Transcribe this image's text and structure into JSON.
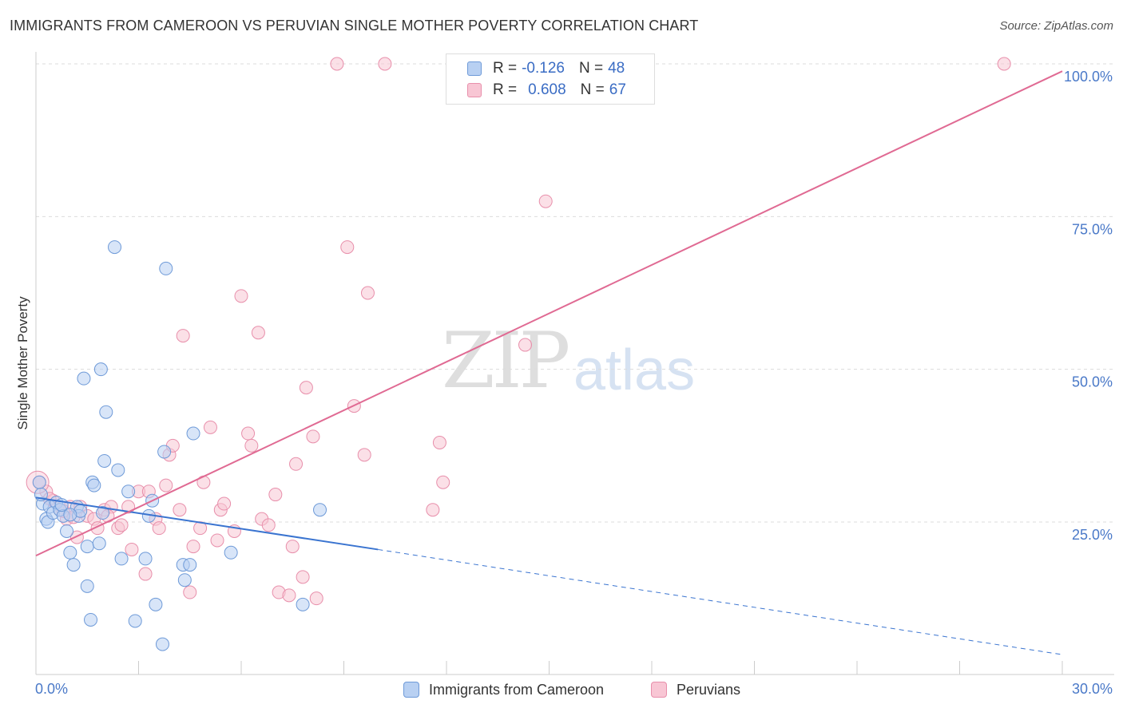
{
  "header": {
    "title": "IMMIGRANTS FROM CAMEROON VS PERUVIAN SINGLE MOTHER POVERTY CORRELATION CHART",
    "source": "Source: ZipAtlas.com"
  },
  "watermark": {
    "zip": "ZIP",
    "atlas": "atlas"
  },
  "legend_top": {
    "rows": [
      {
        "r_label": "R =",
        "r_value": "-0.126",
        "n_label": "N =",
        "n_value": "48"
      },
      {
        "r_label": "R =",
        "r_value": "0.608",
        "n_label": "N =",
        "n_value": "67"
      }
    ]
  },
  "legend_bottom": {
    "items": [
      "Immigrants from Cameroon",
      "Peruvians"
    ]
  },
  "colors": {
    "blue_fill": "#b8d0f2",
    "blue_stroke": "#6e9ad8",
    "blue_line": "#3a74d0",
    "pink_fill": "#f8c6d4",
    "pink_stroke": "#e88fab",
    "pink_line": "#e06a93",
    "tick_text": "#4a79c8"
  },
  "chart_data": {
    "type": "scatter",
    "ylabel": "Single Mother Poverty",
    "xlim": [
      0,
      30
    ],
    "ylim": [
      0,
      102
    ],
    "x_tick_labels": [
      "0.0%",
      "30.0%"
    ],
    "y_ticks": [
      25,
      50,
      75,
      100
    ],
    "y_tick_labels": [
      "25.0%",
      "50.0%",
      "75.0%",
      "100.0%"
    ],
    "grid": true,
    "series": [
      {
        "name": "Immigrants from Cameroon",
        "r": -0.126,
        "n": 48,
        "trend": {
          "x0": 0,
          "y0": 29.0,
          "x1": 10.0,
          "y1": 20.5,
          "dashed_to_x": 30,
          "dashed_to_y": 3.3
        },
        "points": [
          [
            0.1,
            31.5
          ],
          [
            0.2,
            28.0
          ],
          [
            0.3,
            25.5
          ],
          [
            0.35,
            25.0
          ],
          [
            0.4,
            27.5
          ],
          [
            0.5,
            26.5
          ],
          [
            0.6,
            28.2
          ],
          [
            0.7,
            27.0
          ],
          [
            0.8,
            26.0
          ],
          [
            0.9,
            23.5
          ],
          [
            1.0,
            20.0
          ],
          [
            1.1,
            18.0
          ],
          [
            1.2,
            27.5
          ],
          [
            1.25,
            26.0
          ],
          [
            1.3,
            26.8
          ],
          [
            1.4,
            48.5
          ],
          [
            1.5,
            21.0
          ],
          [
            1.5,
            14.5
          ],
          [
            1.6,
            9.0
          ],
          [
            1.65,
            31.5
          ],
          [
            1.7,
            31.0
          ],
          [
            1.85,
            21.5
          ],
          [
            1.9,
            50.0
          ],
          [
            1.95,
            26.5
          ],
          [
            2.0,
            35.0
          ],
          [
            2.05,
            43.0
          ],
          [
            2.3,
            70.0
          ],
          [
            2.4,
            33.5
          ],
          [
            2.5,
            19.0
          ],
          [
            2.7,
            30.0
          ],
          [
            2.9,
            8.8
          ],
          [
            3.2,
            19.0
          ],
          [
            3.3,
            26.0
          ],
          [
            3.4,
            28.5
          ],
          [
            3.5,
            11.5
          ],
          [
            3.7,
            5.0
          ],
          [
            3.75,
            36.5
          ],
          [
            3.8,
            66.5
          ],
          [
            4.3,
            18.0
          ],
          [
            4.35,
            15.5
          ],
          [
            4.5,
            18.0
          ],
          [
            4.6,
            39.5
          ],
          [
            5.7,
            20.0
          ],
          [
            7.8,
            11.5
          ],
          [
            8.3,
            27.0
          ],
          [
            0.15,
            29.5
          ],
          [
            1.0,
            26.2
          ],
          [
            0.75,
            27.8
          ]
        ]
      },
      {
        "name": "Peruvians",
        "r": 0.608,
        "n": 67,
        "trend": {
          "x0": 0,
          "y0": 19.5,
          "x1": 30,
          "y1": 98.8
        },
        "points": [
          [
            0.1,
            31.5
          ],
          [
            0.3,
            30.0
          ],
          [
            0.5,
            28.5
          ],
          [
            0.7,
            27.0
          ],
          [
            0.9,
            25.5
          ],
          [
            1.0,
            27.5
          ],
          [
            1.2,
            22.5
          ],
          [
            1.3,
            27.5
          ],
          [
            1.5,
            26.0
          ],
          [
            1.7,
            25.5
          ],
          [
            1.8,
            24.0
          ],
          [
            2.0,
            27.0
          ],
          [
            2.2,
            27.5
          ],
          [
            2.4,
            24.0
          ],
          [
            2.5,
            24.5
          ],
          [
            2.7,
            27.5
          ],
          [
            2.8,
            20.5
          ],
          [
            3.0,
            30.0
          ],
          [
            3.2,
            16.5
          ],
          [
            3.3,
            30.0
          ],
          [
            3.5,
            25.5
          ],
          [
            3.6,
            24.0
          ],
          [
            3.8,
            31.0
          ],
          [
            3.9,
            36.0
          ],
          [
            4.0,
            37.5
          ],
          [
            4.2,
            27.0
          ],
          [
            4.3,
            55.5
          ],
          [
            4.5,
            13.5
          ],
          [
            4.6,
            21.0
          ],
          [
            4.8,
            24.0
          ],
          [
            4.9,
            31.5
          ],
          [
            5.1,
            40.5
          ],
          [
            5.3,
            22.0
          ],
          [
            5.4,
            27.0
          ],
          [
            5.5,
            28.0
          ],
          [
            5.8,
            23.5
          ],
          [
            6.0,
            62.0
          ],
          [
            6.2,
            39.5
          ],
          [
            6.3,
            37.5
          ],
          [
            6.5,
            56.0
          ],
          [
            6.6,
            25.5
          ],
          [
            6.8,
            24.5
          ],
          [
            7.0,
            29.5
          ],
          [
            7.1,
            13.5
          ],
          [
            7.4,
            13.0
          ],
          [
            7.5,
            21.0
          ],
          [
            7.6,
            34.5
          ],
          [
            7.8,
            16.0
          ],
          [
            7.9,
            47.0
          ],
          [
            8.1,
            39.0
          ],
          [
            8.2,
            12.5
          ],
          [
            8.8,
            100.0
          ],
          [
            9.1,
            70.0
          ],
          [
            9.3,
            44.0
          ],
          [
            9.6,
            36.0
          ],
          [
            9.7,
            62.5
          ],
          [
            10.2,
            100.0
          ],
          [
            11.6,
            27.0
          ],
          [
            11.8,
            38.0
          ],
          [
            11.9,
            31.5
          ],
          [
            14.3,
            54.0
          ],
          [
            14.9,
            77.5
          ],
          [
            28.3,
            100.0
          ],
          [
            0.4,
            28.8
          ],
          [
            0.8,
            26.8
          ],
          [
            1.1,
            25.8
          ],
          [
            2.1,
            26.0
          ]
        ]
      }
    ]
  }
}
